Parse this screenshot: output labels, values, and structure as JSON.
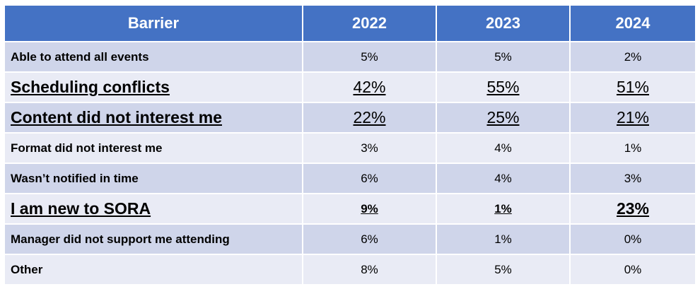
{
  "table": {
    "headers": [
      "Barrier",
      "2022",
      "2023",
      "2024"
    ],
    "rows": [
      {
        "label": "Able to attend all events",
        "values": [
          "5%",
          "5%",
          "2%"
        ]
      },
      {
        "label": "Scheduling conflicts",
        "values": [
          "42%",
          "55%",
          "51%"
        ]
      },
      {
        "label": "Content did not interest me",
        "values": [
          "22%",
          "25%",
          "21%"
        ]
      },
      {
        "label": "Format did not interest me",
        "values": [
          "3%",
          "4%",
          "1%"
        ]
      },
      {
        "label": "Wasn’t notified in time",
        "values": [
          "6%",
          "4%",
          "3%"
        ]
      },
      {
        "label": "I am new to SORA",
        "values": [
          "9%",
          "1%",
          "23%"
        ]
      },
      {
        "label": "Manager did not support me attending",
        "values": [
          "6%",
          "1%",
          "0%"
        ]
      },
      {
        "label": "Other",
        "values": [
          "8%",
          "5%",
          "0%"
        ]
      }
    ]
  },
  "colors": {
    "header_bg": "#4472c4",
    "header_text": "#ffffff",
    "row_band_dark": "#cfd5ea",
    "row_band_light": "#e9ebf5"
  }
}
